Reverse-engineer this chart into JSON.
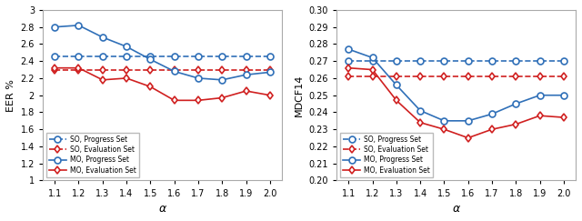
{
  "alpha": [
    1.1,
    1.2,
    1.3,
    1.4,
    1.5,
    1.6,
    1.7,
    1.8,
    1.9,
    2.0
  ],
  "eer_so_progress": [
    2.46,
    2.46,
    2.46,
    2.46,
    2.46,
    2.46,
    2.46,
    2.46,
    2.46,
    2.46
  ],
  "eer_so_eval": [
    2.3,
    2.3,
    2.3,
    2.3,
    2.3,
    2.3,
    2.3,
    2.3,
    2.3,
    2.3
  ],
  "eer_mo_progress": [
    2.8,
    2.82,
    2.68,
    2.57,
    2.42,
    2.28,
    2.2,
    2.18,
    2.24,
    2.27
  ],
  "eer_mo_eval": [
    2.32,
    2.32,
    2.18,
    2.2,
    2.1,
    1.94,
    1.94,
    1.97,
    2.05,
    2.0
  ],
  "dcf_so_progress": [
    0.27,
    0.27,
    0.27,
    0.27,
    0.27,
    0.27,
    0.27,
    0.27,
    0.27,
    0.27
  ],
  "dcf_so_eval": [
    0.261,
    0.261,
    0.261,
    0.261,
    0.261,
    0.261,
    0.261,
    0.261,
    0.261,
    0.261
  ],
  "dcf_mo_progress": [
    0.277,
    0.272,
    0.256,
    0.241,
    0.235,
    0.235,
    0.239,
    0.245,
    0.25,
    0.25
  ],
  "dcf_mo_eval": [
    0.266,
    0.265,
    0.247,
    0.234,
    0.23,
    0.225,
    0.23,
    0.233,
    0.238,
    0.237
  ],
  "eer_ylim": [
    1.0,
    3.0
  ],
  "eer_yticks": [
    1.0,
    1.2,
    1.4,
    1.6,
    1.8,
    2.0,
    2.2,
    2.4,
    2.6,
    2.8,
    3.0
  ],
  "dcf_ylim": [
    0.2,
    0.3
  ],
  "dcf_yticks": [
    0.2,
    0.21,
    0.22,
    0.23,
    0.24,
    0.25,
    0.26,
    0.27,
    0.28,
    0.29,
    0.3
  ],
  "color_blue": "#3070b8",
  "color_red": "#d02020",
  "xlabel": "α",
  "ylabel_left": "EER %",
  "ylabel_right": "MDCF14",
  "legend_labels": [
    "SO, Progress Set",
    "SO, Evaluation Set",
    "MO, Progress Set",
    "MO, Evaluation Set"
  ]
}
